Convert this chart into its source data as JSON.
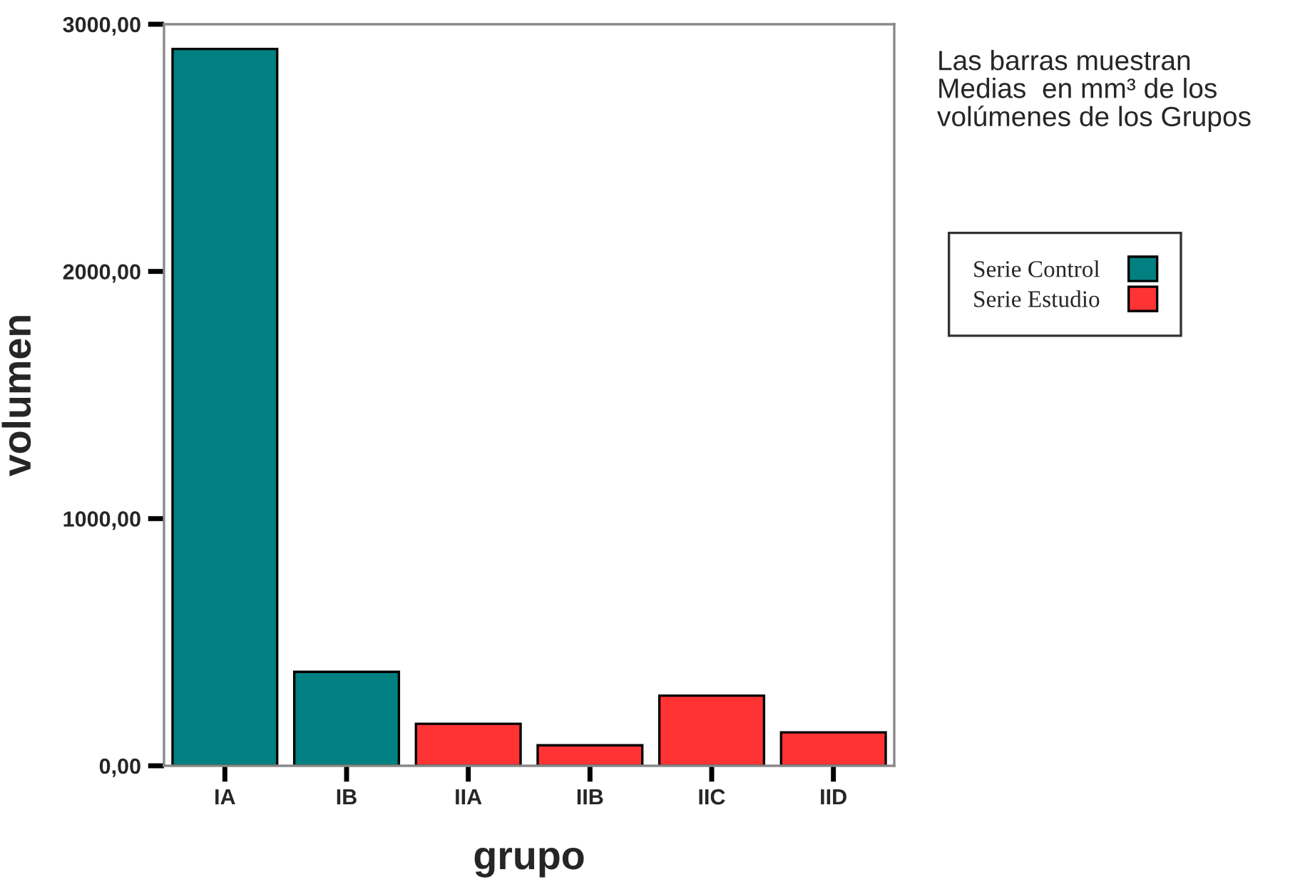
{
  "chart_data": {
    "type": "bar",
    "xlabel": "grupo",
    "ylabel": "volumen",
    "categories": [
      "IA",
      "IB",
      "IIA",
      "IIB",
      "IIC",
      "IID"
    ],
    "series": [
      {
        "name": "Serie Control",
        "color": "#008080",
        "values": [
          2900,
          380,
          null,
          null,
          null,
          null
        ]
      },
      {
        "name": "Serie Estudio",
        "color": "#ff3333",
        "values": [
          null,
          null,
          170,
          83,
          284,
          135
        ]
      }
    ],
    "ylim": [
      0,
      3000
    ],
    "yticks": [
      {
        "value": 0,
        "label": "0,00"
      },
      {
        "value": 1000,
        "label": "1000,00"
      },
      {
        "value": 2000,
        "label": "2000,00"
      },
      {
        "value": 3000,
        "label": "3000,00"
      }
    ],
    "annotations": [
      "Las barras muestran\nMedias  en mm³ de los\nvolúmenes de los Grupos"
    ],
    "grid": false,
    "legend": "right"
  }
}
